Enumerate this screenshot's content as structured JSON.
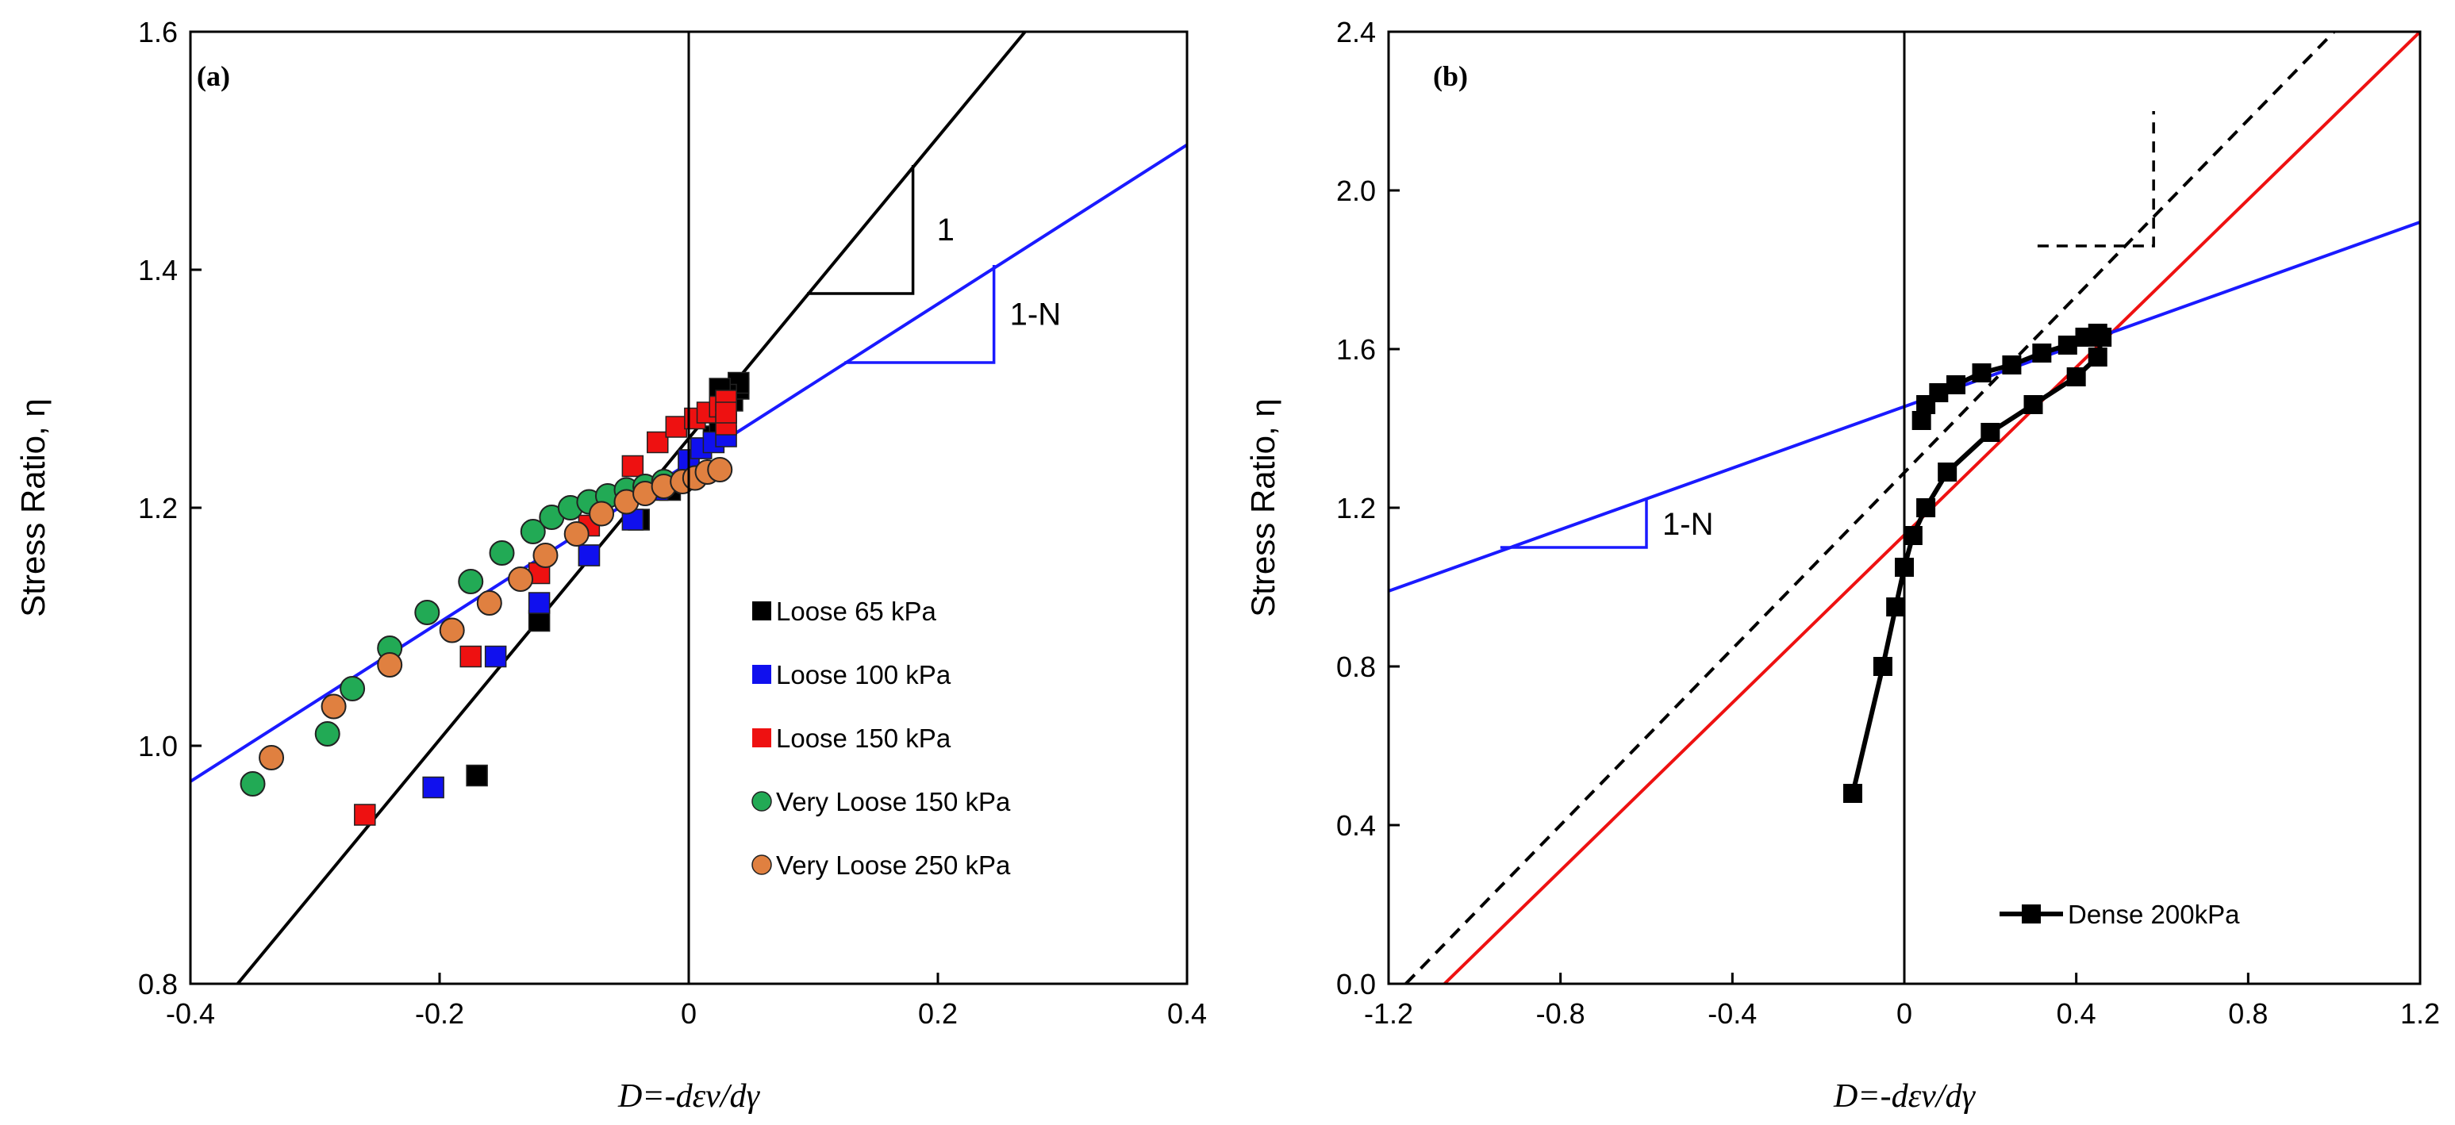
{
  "chart_data": [
    {
      "type": "scatter",
      "panel_label": "(a)",
      "title": "",
      "xlabel": "D=-dεv/dγ",
      "ylabel": "Stress Ratio, η",
      "xlim": [
        -0.4,
        0.4
      ],
      "ylim": [
        0.8,
        1.6
      ],
      "xticks": [
        "-0.4",
        "-0.2",
        "0",
        "0.2",
        "0.4"
      ],
      "yticks": [
        "0.8",
        "1.0",
        "1.2",
        "1.4",
        "1.6"
      ],
      "grid": false,
      "legend_position": "bottom-right",
      "series": [
        {
          "name": "Loose 65 kPa",
          "marker": "square",
          "color": "#000000",
          "x": [
            -0.17,
            -0.12,
            -0.08,
            -0.04,
            -0.015,
            0.0,
            0.01,
            0.02,
            0.025,
            0.03,
            0.035,
            0.04,
            0.04,
            0.03,
            0.025
          ],
          "y": [
            0.975,
            1.105,
            1.16,
            1.19,
            1.215,
            1.24,
            1.25,
            1.26,
            1.27,
            1.28,
            1.29,
            1.3,
            1.305,
            1.295,
            1.3
          ]
        },
        {
          "name": "Loose 100 kPa",
          "marker": "square",
          "color": "#1010ee",
          "x": [
            -0.205,
            -0.155,
            -0.12,
            -0.08,
            -0.045,
            -0.025,
            0.0,
            0.01,
            0.02,
            0.03
          ],
          "y": [
            0.965,
            1.075,
            1.12,
            1.16,
            1.19,
            1.215,
            1.24,
            1.25,
            1.255,
            1.26
          ]
        },
        {
          "name": "Loose 150 kPa",
          "marker": "square",
          "color": "#ee1111",
          "x": [
            -0.26,
            -0.175,
            -0.12,
            -0.08,
            -0.045,
            -0.025,
            -0.01,
            0.005,
            0.015,
            0.025,
            0.03,
            0.03,
            0.03
          ],
          "y": [
            0.942,
            1.075,
            1.145,
            1.185,
            1.235,
            1.255,
            1.268,
            1.275,
            1.28,
            1.285,
            1.29,
            1.27,
            1.28
          ]
        },
        {
          "name": "Very Loose 150 kPa",
          "marker": "circle",
          "color": "#22aa55",
          "x": [
            -0.35,
            -0.29,
            -0.27,
            -0.24,
            -0.21,
            -0.175,
            -0.15,
            -0.125,
            -0.11,
            -0.095,
            -0.08,
            -0.065,
            -0.05,
            -0.035,
            -0.02
          ],
          "y": [
            0.968,
            1.01,
            1.048,
            1.082,
            1.112,
            1.138,
            1.162,
            1.18,
            1.192,
            1.2,
            1.205,
            1.21,
            1.215,
            1.218,
            1.222
          ]
        },
        {
          "name": "Very Loose 250 kPa",
          "marker": "circle",
          "color": "#e08040",
          "x": [
            -0.335,
            -0.285,
            -0.24,
            -0.19,
            -0.16,
            -0.135,
            -0.115,
            -0.09,
            -0.07,
            -0.05,
            -0.035,
            -0.02,
            -0.005,
            0.005,
            0.015,
            0.025
          ],
          "y": [
            0.99,
            1.033,
            1.068,
            1.097,
            1.12,
            1.14,
            1.16,
            1.178,
            1.195,
            1.205,
            1.212,
            1.218,
            1.222,
            1.225,
            1.23,
            1.232
          ]
        }
      ],
      "reference_lines": [
        {
          "name": "unit-slope-line",
          "color": "#000000",
          "dash": "solid",
          "x": [
            -0.37,
            0.27
          ],
          "y": [
            0.79,
            1.6
          ]
        },
        {
          "name": "1-N-line",
          "color": "#1a1aff",
          "dash": "solid",
          "x": [
            -0.4,
            0.4
          ],
          "y": [
            0.97,
            1.505
          ]
        }
      ],
      "slope_triangles": [
        {
          "name": "triangle-1",
          "color": "#000000",
          "x1": 0.095,
          "y1": 1.38,
          "x2": 0.18,
          "y2": 1.488,
          "label": "1"
        },
        {
          "name": "triangle-1-N",
          "color": "#1a1aff",
          "x1": 0.125,
          "y1": 1.322,
          "x2": 0.245,
          "y2": 1.404,
          "label": "1-N"
        }
      ]
    },
    {
      "type": "line",
      "panel_label": "(b)",
      "title": "",
      "xlabel": "D=-dεv/dγ",
      "ylabel": "Stress Ratio, η",
      "xlim": [
        -1.2,
        1.2
      ],
      "ylim": [
        0.0,
        2.4
      ],
      "xticks": [
        "-1.2",
        "-0.8",
        "-0.4",
        "0",
        "0.4",
        "0.8",
        "1.2"
      ],
      "yticks": [
        "0.0",
        "0.4",
        "0.8",
        "1.2",
        "1.6",
        "2.0",
        "2.4"
      ],
      "grid": false,
      "legend_position": "bottom-right",
      "series": [
        {
          "name": "Dense 200kPa",
          "marker": "square",
          "color": "#000000",
          "x": [
            -0.12,
            -0.05,
            -0.02,
            0.0,
            0.02,
            0.05,
            0.1,
            0.2,
            0.3,
            0.4,
            0.45,
            0.46,
            0.45,
            0.42,
            0.38,
            0.32,
            0.25,
            0.18,
            0.12,
            0.08,
            0.05,
            0.04
          ],
          "y": [
            0.48,
            0.8,
            0.95,
            1.05,
            1.13,
            1.2,
            1.29,
            1.39,
            1.46,
            1.53,
            1.58,
            1.63,
            1.64,
            1.63,
            1.61,
            1.59,
            1.56,
            1.54,
            1.51,
            1.49,
            1.46,
            1.42
          ]
        }
      ],
      "reference_lines": [
        {
          "name": "dashed-unit-line",
          "color": "#000000",
          "dash": "dashed",
          "x": [
            -1.16,
            1.0
          ],
          "y": [
            0.0,
            2.4
          ]
        },
        {
          "name": "red-line",
          "color": "#ee1111",
          "dash": "solid",
          "x": [
            -1.07,
            1.2
          ],
          "y": [
            0.0,
            2.4
          ]
        },
        {
          "name": "blue-1-N-line",
          "color": "#1a1aff",
          "dash": "solid",
          "x": [
            -1.2,
            1.2
          ],
          "y": [
            0.99,
            1.92
          ]
        }
      ],
      "slope_triangles": [
        {
          "name": "dashed-triangle",
          "color": "#000000",
          "dash": "dashed",
          "x1": 0.31,
          "y1": 1.86,
          "x2": 0.58,
          "y2": 2.2,
          "label": ""
        },
        {
          "name": "triangle-1-N-b",
          "color": "#1a1aff",
          "x1": -0.94,
          "y1": 1.1,
          "x2": -0.6,
          "y2": 1.22,
          "label": "1-N"
        }
      ]
    }
  ]
}
